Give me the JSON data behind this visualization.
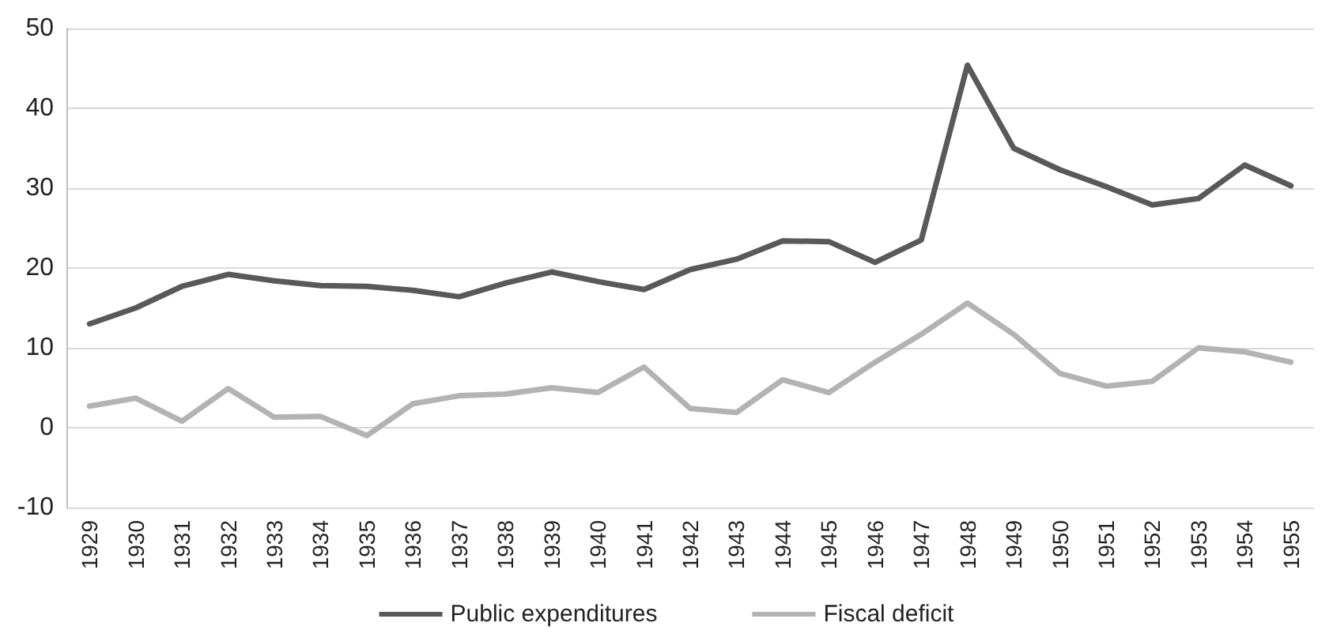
{
  "chart_data": {
    "type": "line",
    "categories": [
      "1929",
      "1930",
      "1931",
      "1932",
      "1933",
      "1934",
      "1935",
      "1936",
      "1937",
      "1938",
      "1939",
      "1940",
      "1941",
      "1942",
      "1943",
      "1944",
      "1945",
      "1946",
      "1947",
      "1948",
      "1949",
      "1950",
      "1951",
      "1952",
      "1953",
      "1954",
      "1955"
    ],
    "series": [
      {
        "name": "Public expenditures",
        "color": "#595959",
        "values": [
          13,
          15,
          17.7,
          19.2,
          18.4,
          17.8,
          17.7,
          17.2,
          16.4,
          18.1,
          19.5,
          18.3,
          17.3,
          19.8,
          21.1,
          23.4,
          23.3,
          20.7,
          23.5,
          45.4,
          35,
          32.3,
          30.2,
          27.9,
          28.7,
          32.9,
          30.3
        ]
      },
      {
        "name": "Fiscal deficit",
        "color": "#b3b3b3",
        "values": [
          2.7,
          3.7,
          0.8,
          4.9,
          1.3,
          1.4,
          -1,
          3,
          4,
          4.2,
          5,
          4.4,
          7.6,
          2.4,
          1.9,
          6,
          4.4,
          8.2,
          11.7,
          15.6,
          11.7,
          6.8,
          5.2,
          5.8,
          10,
          9.5,
          8.2
        ]
      }
    ],
    "ylim": [
      -10,
      50
    ],
    "yticks": [
      -10,
      0,
      10,
      20,
      30,
      40,
      50
    ],
    "grid": "y",
    "legend": "bottom",
    "marker": "none",
    "line_style": "solid"
  }
}
